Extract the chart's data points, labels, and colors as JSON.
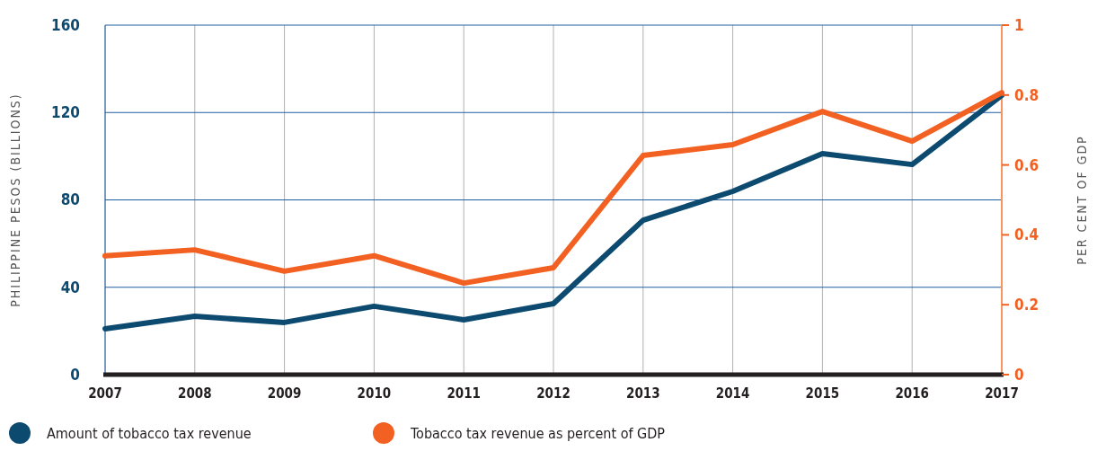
{
  "chart_data": {
    "type": "line",
    "ylabel": "PHILIPPINE PESOS (BILLIONS)",
    "y2label": "PER CENT OF GDP",
    "x": [
      2007,
      2008,
      2009,
      2010,
      2011,
      2012,
      2013,
      2014,
      2015,
      2016,
      2017
    ],
    "xlim": [
      2007,
      2017
    ],
    "xticks": [
      2007,
      2008,
      2009,
      2010,
      2011,
      2012,
      2013,
      2014,
      2015,
      2016,
      2017
    ],
    "ylim": [
      0,
      160
    ],
    "yticks": [
      0,
      40,
      80,
      120,
      160
    ],
    "y2lim": [
      0,
      1
    ],
    "y2ticks": [
      {
        "value": 0,
        "label": "0"
      },
      {
        "value": 0.2,
        "label": "0.2"
      },
      {
        "value": 0.4,
        "label": "0.4"
      },
      {
        "value": 0.6,
        "label": "0.6"
      },
      {
        "value": 0.8,
        "label": "0.8"
      },
      {
        "value": 1,
        "label": "1"
      }
    ],
    "grid": true,
    "legend": "bottom",
    "marker": "none",
    "line_style": "solid",
    "series": [
      {
        "name": "Amount of tobacco tax revenue",
        "color": "#0d4a70",
        "values": [
          21,
          26.7,
          23.9,
          31.3,
          25.1,
          32.5,
          70.7,
          83.9,
          101.2,
          96.2,
          127.9
        ]
      },
      {
        "name": "Tobacco tax revenue as percent of GDP",
        "color": "#f26122",
        "axis": "y2",
        "values": [
          0.34,
          0.357,
          0.296,
          0.34,
          0.262,
          0.306,
          0.627,
          0.658,
          0.753,
          0.668,
          0.807
        ]
      }
    ]
  }
}
